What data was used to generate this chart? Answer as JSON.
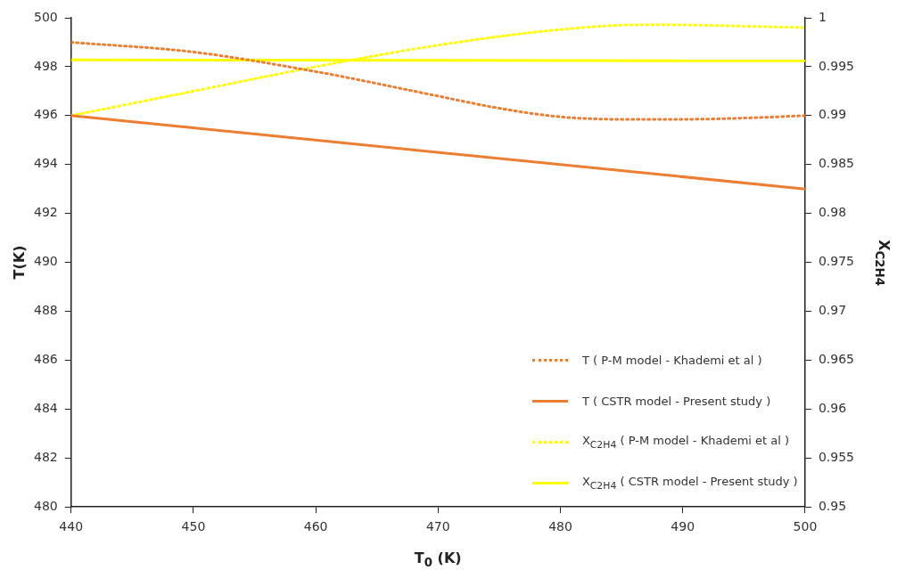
{
  "chart_data": {
    "type": "line",
    "xlabel": "T$_{0}$ (K)",
    "ylabel": "T(K)",
    "y2label": "X$_{C2H4}$",
    "xlim": [
      440,
      500
    ],
    "xticks": [
      440,
      450,
      460,
      470,
      480,
      490,
      500
    ],
    "ylim": [
      480,
      500
    ],
    "yticks": [
      480,
      482,
      484,
      486,
      488,
      490,
      492,
      494,
      496,
      498,
      500
    ],
    "y2lim": [
      0.95,
      1
    ],
    "y2ticks": [
      0.95,
      0.955,
      0.96,
      0.965,
      0.97,
      0.975,
      0.98,
      0.985,
      0.99,
      0.995,
      1
    ],
    "grid": false,
    "legend": "bottom right",
    "marker": "none",
    "series": [
      {
        "name": "T  ( P-M model - Khademi et al )",
        "color": "#ed7d31",
        "line_style": "dotted",
        "x": [
          440,
          450,
          460,
          470,
          475,
          480,
          485,
          490,
          495,
          500
        ],
        "values": [
          499,
          498.6,
          497.8,
          496.8,
          496.3,
          495.95,
          495.85,
          495.85,
          495.9,
          496
        ]
      },
      {
        "name": "T ( CSTR model - Present study )",
        "color": "#ed7d31",
        "line_style": "solid",
        "x": [
          440,
          500
        ],
        "values": [
          496,
          493
        ]
      },
      {
        "name": "X$_{C2H4}$  ( P-M model - Khademi et al )",
        "color": "#ffff00",
        "line_style": "dotted",
        "axis": "y2",
        "x": [
          440,
          450,
          460,
          470,
          480,
          487,
          500
        ],
        "values": [
          0.99,
          0.9925,
          0.995,
          0.9972,
          0.9988,
          0.9993,
          0.999
        ]
      },
      {
        "name": "X$_{C2H4}$  ( CSTR model -  Present study )",
        "color": "#ffff00",
        "line_style": "solid",
        "axis": "y2",
        "x": [
          440,
          500
        ],
        "values": [
          0.9957,
          0.9956
        ]
      }
    ]
  }
}
